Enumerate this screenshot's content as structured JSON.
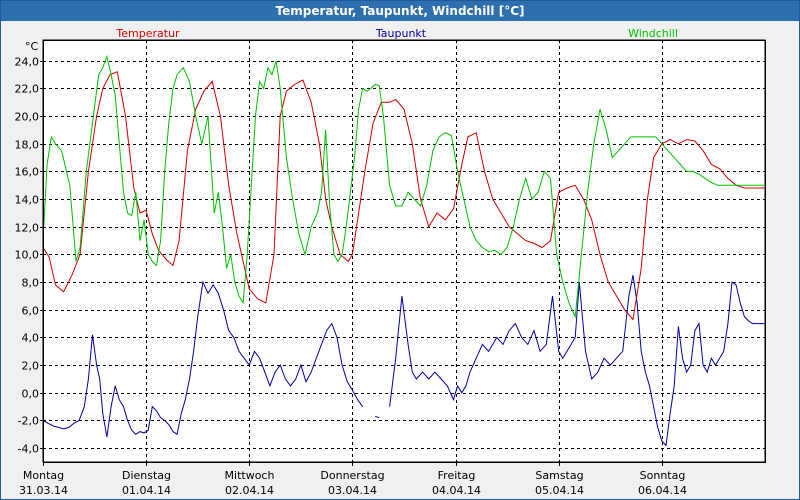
{
  "window": {
    "title": "Temperatur, Taupunkt, Windchill [°C]"
  },
  "chart_data": {
    "type": "line",
    "title": "Temperatur, Taupunkt, Windchill [°C]",
    "ylabel": "°C",
    "ylim": [
      -5,
      25.5
    ],
    "yticks": [
      -4,
      -2,
      0,
      2,
      4,
      6,
      8,
      10,
      12,
      14,
      16,
      18,
      20,
      22,
      24
    ],
    "ytick_labels": [
      "-4,0",
      "-2,0",
      "0,0",
      "2,0",
      "4,0",
      "6,0",
      "8,0",
      "10,0",
      "12,0",
      "14,0",
      "16,0",
      "18,0",
      "20,0",
      "22,0",
      "24,0"
    ],
    "xlim": [
      0,
      7
    ],
    "x_unit": "days since 31.03.14 00:00",
    "grid": true,
    "day_labels": [
      {
        "x": 0,
        "day": "Montag",
        "date": "31.03.14"
      },
      {
        "x": 1,
        "day": "Dienstag",
        "date": "01.04.14"
      },
      {
        "x": 2,
        "day": "Mittwoch",
        "date": "02.04.14"
      },
      {
        "x": 3,
        "day": "Donnerstag",
        "date": "03.04.14"
      },
      {
        "x": 4,
        "day": "Freitag",
        "date": "04.04.14"
      },
      {
        "x": 5,
        "day": "Samstag",
        "date": "05.04.14"
      },
      {
        "x": 6,
        "day": "Sonntag",
        "date": "06.04.14"
      }
    ],
    "series": [
      {
        "name": "Temperatur",
        "color": "#d00000",
        "x": [
          0,
          0.06,
          0.12,
          0.2,
          0.28,
          0.36,
          0.44,
          0.52,
          0.58,
          0.65,
          0.72,
          0.8,
          0.88,
          0.94,
          1.0,
          1.06,
          1.12,
          1.2,
          1.26,
          1.32,
          1.4,
          1.48,
          1.56,
          1.64,
          1.72,
          1.8,
          1.88,
          1.94,
          2.0,
          2.08,
          2.16,
          2.24,
          2.3,
          2.36,
          2.44,
          2.52,
          2.6,
          2.68,
          2.74,
          2.8,
          2.88,
          2.96,
          3.0,
          3.04,
          3.12,
          3.2,
          3.28,
          3.36,
          3.42,
          3.5,
          3.58,
          3.66,
          3.74,
          3.82,
          3.9,
          3.98,
          4.06,
          4.12,
          4.2,
          4.28,
          4.36,
          4.44,
          4.52,
          4.6,
          4.68,
          4.76,
          4.84,
          4.92,
          5.0,
          5.08,
          5.16,
          5.24,
          5.32,
          5.4,
          5.48,
          5.56,
          5.64,
          5.72,
          5.8,
          5.86,
          5.92,
          6.0,
          6.08,
          6.16,
          6.24,
          6.32,
          6.4,
          6.48,
          6.56,
          6.64,
          6.72,
          6.8,
          6.88,
          6.96,
          7.0
        ],
        "values": [
          10.5,
          9.8,
          7.8,
          7.3,
          8.5,
          10.0,
          16.0,
          20.0,
          22.0,
          23.0,
          23.2,
          20.0,
          14.8,
          13.0,
          13.2,
          11.5,
          10.3,
          9.6,
          9.2,
          11.0,
          17.5,
          20.5,
          21.8,
          22.5,
          20.0,
          15.0,
          11.5,
          9.5,
          7.5,
          6.8,
          6.5,
          10.0,
          20.0,
          21.8,
          22.3,
          22.6,
          21.0,
          18.0,
          14.0,
          12.0,
          10.0,
          9.5,
          10.0,
          12.0,
          16.0,
          19.5,
          21.0,
          21.0,
          21.2,
          20.5,
          18.0,
          14.0,
          12.0,
          13.0,
          12.5,
          13.3,
          16.5,
          18.5,
          18.8,
          16.0,
          14.0,
          13.0,
          12.0,
          11.5,
          11.0,
          10.8,
          10.5,
          11.0,
          14.5,
          14.8,
          15.0,
          14.0,
          12.5,
          10.0,
          8.0,
          7.0,
          6.0,
          5.3,
          9.0,
          14.0,
          17.0,
          18.0,
          18.3,
          18.0,
          18.3,
          18.2,
          17.5,
          16.5,
          16.2,
          15.5,
          15.0,
          14.8,
          14.8,
          14.8,
          14.8
        ]
      },
      {
        "name": "Taupunkt",
        "color": "#0000a0",
        "x": [
          0,
          0.05,
          0.1,
          0.15,
          0.2,
          0.25,
          0.3,
          0.35,
          0.4,
          0.44,
          0.48,
          0.52,
          0.55,
          0.58,
          0.62,
          0.66,
          0.7,
          0.74,
          0.78,
          0.82,
          0.86,
          0.9,
          0.94,
          0.98,
          1.02,
          1.06,
          1.1,
          1.14,
          1.18,
          1.22,
          1.26,
          1.3,
          1.34,
          1.38,
          1.42,
          1.46,
          1.5,
          1.55,
          1.6,
          1.65,
          1.7,
          1.75,
          1.8,
          1.85,
          1.9,
          1.95,
          2.0,
          2.05,
          2.1,
          2.15,
          2.2,
          2.25,
          2.3,
          2.35,
          2.4,
          2.45,
          2.5,
          2.55,
          2.6,
          2.65,
          2.7,
          2.75,
          2.8,
          2.85,
          2.9,
          2.95,
          3.0,
          3.05,
          3.1
        ],
        "values": [
          -2.0,
          -2.2,
          -2.4,
          -2.5,
          -2.6,
          -2.5,
          -2.2,
          -2.0,
          -1.0,
          1.0,
          4.2,
          2.0,
          1.0,
          -1.5,
          -3.2,
          -1.0,
          0.5,
          -0.5,
          -1.0,
          -2.0,
          -2.7,
          -3.0,
          -2.8,
          -2.9,
          -2.7,
          -1.0,
          -1.3,
          -1.8,
          -2.0,
          -2.3,
          -2.8,
          -3.0,
          -1.5,
          -0.5,
          1.0,
          3.0,
          5.5,
          8.0,
          7.2,
          7.8,
          7.2,
          6.0,
          4.5,
          4.0,
          3.0,
          2.5,
          2.0,
          3.0,
          2.5,
          1.5,
          0.5,
          1.5,
          2.0,
          1.0,
          0.5,
          1.0,
          2.0,
          0.8,
          1.5,
          2.5,
          3.5,
          4.5,
          5.0,
          4.0,
          2.0,
          0.8,
          0.2,
          -0.5,
          -1.0
        ]
      },
      {
        "name": "Taupunkt (2)",
        "color": "#0000a0",
        "x": [
          3.22,
          3.26
        ],
        "values": [
          -1.7,
          -1.8
        ]
      },
      {
        "name": "Taupunkt (3)",
        "color": "#0000a0",
        "x": [
          3.36,
          3.42,
          3.48,
          3.54,
          3.58,
          3.62,
          3.68,
          3.74,
          3.8,
          3.86,
          3.92,
          3.98,
          4.02,
          4.06,
          4.1,
          4.14,
          4.2,
          4.26,
          4.32,
          4.4,
          4.46,
          4.52,
          4.58,
          4.64,
          4.7,
          4.76,
          4.82,
          4.88,
          4.94,
          5.0,
          5.04,
          5.08,
          5.12,
          5.16,
          5.2,
          5.26,
          5.32,
          5.38,
          5.44,
          5.5,
          5.56,
          5.62,
          5.68,
          5.72,
          5.76,
          5.8,
          5.84,
          5.88,
          5.92,
          5.96,
          6.0,
          6.04,
          6.08,
          6.12,
          6.16,
          6.2,
          6.24,
          6.28,
          6.32,
          6.36,
          6.4,
          6.44,
          6.48,
          6.52,
          6.56,
          6.6,
          6.64,
          6.68,
          6.72,
          6.76,
          6.8,
          6.84,
          6.88,
          6.92,
          6.96,
          7.0
        ],
        "values": [
          -1.0,
          2.5,
          7.0,
          3.5,
          1.5,
          1.0,
          1.5,
          1.0,
          1.5,
          1.0,
          0.5,
          -0.5,
          0.5,
          0.0,
          0.5,
          1.5,
          2.5,
          3.5,
          3.0,
          4.0,
          3.5,
          4.5,
          5.0,
          4.0,
          3.5,
          4.5,
          3.0,
          3.5,
          7.0,
          3.0,
          2.5,
          3.0,
          3.5,
          4.0,
          8.0,
          3.0,
          1.0,
          1.5,
          2.5,
          2.0,
          2.5,
          3.0,
          7.0,
          8.5,
          6.5,
          3.0,
          1.5,
          0.5,
          -1.0,
          -2.5,
          -3.5,
          -3.8,
          -1.5,
          0.5,
          4.8,
          2.5,
          1.5,
          2.0,
          4.5,
          5.0,
          2.0,
          1.5,
          2.5,
          2.0,
          2.5,
          3.0,
          5.0,
          8.0,
          7.8,
          6.5,
          5.5,
          5.2,
          5.0,
          5.0,
          5.0,
          5.0
        ]
      },
      {
        "name": "Windchill",
        "color": "#00c000",
        "x": [
          0,
          0.04,
          0.08,
          0.12,
          0.18,
          0.26,
          0.32,
          0.36,
          0.42,
          0.48,
          0.54,
          0.58,
          0.62,
          0.66,
          0.7,
          0.74,
          0.78,
          0.82,
          0.86,
          0.9,
          0.94,
          0.98,
          1.02,
          1.06,
          1.1,
          1.14,
          1.18,
          1.22,
          1.26,
          1.3,
          1.36,
          1.42,
          1.48,
          1.54,
          1.6,
          1.66,
          1.7,
          1.74,
          1.78,
          1.82,
          1.86,
          1.9,
          1.94,
          1.98,
          2.02,
          2.06,
          2.1,
          2.14,
          2.18,
          2.22,
          2.26,
          2.3,
          2.36,
          2.42,
          2.48,
          2.54,
          2.6,
          2.66,
          2.7,
          2.74,
          2.78,
          2.82,
          2.86,
          2.9,
          2.94,
          2.98,
          3.02,
          3.06,
          3.1,
          3.14,
          3.18,
          3.22,
          3.26,
          3.3,
          3.36,
          3.42,
          3.48,
          3.54,
          3.6,
          3.66,
          3.72,
          3.78,
          3.84,
          3.9,
          3.96,
          4.02,
          4.08,
          4.14,
          4.2,
          4.26,
          4.32,
          4.38,
          4.44,
          4.5,
          4.56,
          4.62,
          4.68,
          4.74,
          4.8,
          4.86,
          4.92,
          4.98,
          5.04,
          5.1,
          5.16,
          5.22,
          5.28,
          5.34,
          5.4,
          5.46,
          5.52,
          5.58,
          5.64,
          5.7,
          5.76,
          5.82,
          5.88,
          5.94,
          6.0,
          6.06,
          6.12,
          6.18,
          6.24,
          6.3,
          6.36,
          6.42,
          6.48,
          6.54,
          6.6,
          6.66,
          6.72,
          6.78,
          6.84,
          6.9,
          6.96,
          7.0
        ],
        "values": [
          11.0,
          16.5,
          18.5,
          18.0,
          17.5,
          15.0,
          9.5,
          10.5,
          16.0,
          19.5,
          23.0,
          23.5,
          24.3,
          23.0,
          21.5,
          18.0,
          14.5,
          13.0,
          12.8,
          14.5,
          11.0,
          12.5,
          10.0,
          9.5,
          9.2,
          11.0,
          16.0,
          19.5,
          22.0,
          23.0,
          23.5,
          22.5,
          20.0,
          18.0,
          20.0,
          13.0,
          14.5,
          12.0,
          9.0,
          10.0,
          8.0,
          7.0,
          6.5,
          10.0,
          15.0,
          20.0,
          22.5,
          22.0,
          23.5,
          23.0,
          24.0,
          22.0,
          17.0,
          14.0,
          11.5,
          10.0,
          12.0,
          13.0,
          14.5,
          19.0,
          13.5,
          10.0,
          9.5,
          10.0,
          12.0,
          14.5,
          17.0,
          20.5,
          22.0,
          21.8,
          22.0,
          22.3,
          22.2,
          20.0,
          15.0,
          13.5,
          13.5,
          14.5,
          14.0,
          13.5,
          15.0,
          17.5,
          18.5,
          18.8,
          18.6,
          16.0,
          14.0,
          12.0,
          11.0,
          10.5,
          10.2,
          10.3,
          10.0,
          10.5,
          12.0,
          14.0,
          15.5,
          14.0,
          14.5,
          16.0,
          15.5,
          10.0,
          8.0,
          6.5,
          5.5,
          10.0,
          14.5,
          18.0,
          20.5,
          19.0,
          17.0,
          17.5,
          18.0,
          18.5,
          18.5,
          18.5,
          18.5,
          18.5,
          18.0,
          17.5,
          17.0,
          16.5,
          16.0,
          16.0,
          15.8,
          15.5,
          15.2,
          15.0,
          15.0,
          15.0,
          15.0,
          15.0,
          15.0,
          15.0,
          15.0,
          15.0
        ]
      }
    ],
    "legend": [
      {
        "label": "Temperatur",
        "color": "#d00000"
      },
      {
        "label": "Taupunkt",
        "color": "#0000a0"
      },
      {
        "label": "Windchill",
        "color": "#00c000"
      }
    ]
  }
}
